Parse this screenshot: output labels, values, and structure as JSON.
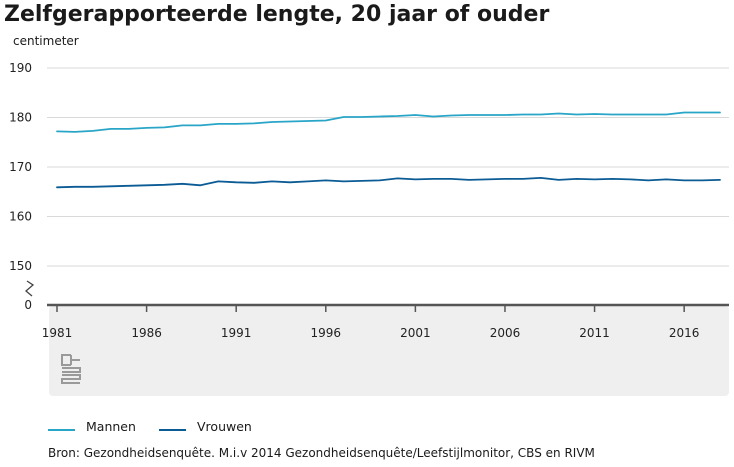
{
  "chart_data": {
    "type": "line",
    "title": "Zelfgerapporteerde lengte, 20 jaar of ouder",
    "ylabel": "centimeter",
    "xlabel": "",
    "x": [
      1981,
      1982,
      1983,
      1984,
      1985,
      1986,
      1987,
      1988,
      1989,
      1990,
      1991,
      1992,
      1993,
      1994,
      1995,
      1996,
      1997,
      1998,
      1999,
      2000,
      2001,
      2002,
      2003,
      2004,
      2005,
      2006,
      2007,
      2008,
      2009,
      2010,
      2011,
      2012,
      2013,
      2014,
      2015,
      2016,
      2017,
      2018
    ],
    "x_ticks": [
      "1981",
      "1986",
      "1991",
      "1996",
      "2001",
      "2006",
      "2011",
      "2016"
    ],
    "y_ticks": [
      "190",
      "180",
      "170",
      "160",
      "150",
      "0"
    ],
    "ylim": [
      150,
      190
    ],
    "axis_break": true,
    "series": [
      {
        "name": "Mannen",
        "color": "#29a5c7",
        "values": [
          177.2,
          177.1,
          177.3,
          177.7,
          177.7,
          177.9,
          178.0,
          178.4,
          178.4,
          178.7,
          178.7,
          178.8,
          179.1,
          179.2,
          179.3,
          179.4,
          180.1,
          180.1,
          180.2,
          180.3,
          180.5,
          180.2,
          180.4,
          180.5,
          180.5,
          180.5,
          180.6,
          180.6,
          180.8,
          180.6,
          180.7,
          180.6,
          180.6,
          180.6,
          180.6,
          181.0,
          181.0,
          181.0
        ]
      },
      {
        "name": "Vrouwen",
        "color": "#0b5b95",
        "values": [
          165.9,
          166.0,
          166.0,
          166.1,
          166.2,
          166.3,
          166.4,
          166.6,
          166.3,
          167.1,
          166.9,
          166.8,
          167.1,
          166.9,
          167.1,
          167.3,
          167.1,
          167.2,
          167.3,
          167.7,
          167.5,
          167.6,
          167.6,
          167.4,
          167.5,
          167.6,
          167.6,
          167.8,
          167.4,
          167.6,
          167.5,
          167.6,
          167.5,
          167.3,
          167.5,
          167.3,
          167.3,
          167.4
        ]
      }
    ],
    "grid": true,
    "legend_position": "bottom-left"
  },
  "source": "Bron: Gezondheidsenquête. M.i.v 2014 Gezondheidsenquête/Leefstijlmonitor, CBS en RIVM",
  "colors": {
    "panel": "#efefef",
    "grid": "#d9d9d9",
    "axis": "#555555",
    "logo": "#9a9a9a"
  },
  "logo_icon": "cbs-logo-icon"
}
